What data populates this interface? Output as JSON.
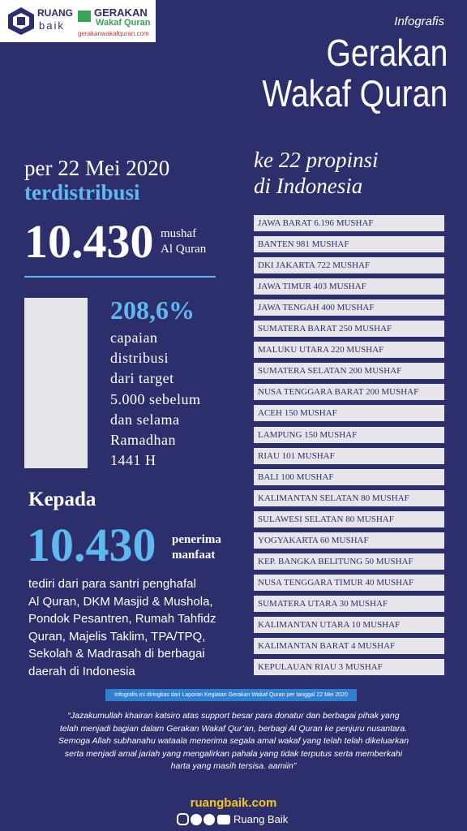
{
  "header": {
    "brand": "RUANG",
    "brand_sub": "baik",
    "partner": "GERAKAN",
    "partner_sub": "Wakaf Quran",
    "partner_url": "gerakanwakafquran.com",
    "kicker": "Infografis",
    "title_line1": "Gerakan",
    "title_line2": "Wakaf Quran"
  },
  "summary": {
    "date": "per 22 Mei 2020",
    "status": "terdistribusi",
    "count": "10.430",
    "unit_line1": "mushaf",
    "unit_line2": "Al Quran",
    "percent": "208,6%",
    "percent_note": [
      "capaian",
      "distribusi",
      "dari target",
      "5.000 sebelum",
      "dan selama",
      "Ramadhan",
      "1441 H"
    ]
  },
  "recipients": {
    "heading": "Kepada",
    "count": "10.430",
    "unit_line1": "penerima",
    "unit_line2": "manfaat",
    "description": [
      "tediri dari para santri penghafal",
      "Al Quran, DKM Masjid & Mushola,",
      "Pondok Pesantren, Rumah Tahfidz",
      "Quran, Majelis Taklim, TPA/TPQ,",
      "Sekolah & Madrasah di berbagai",
      "daerah di Indonesia"
    ]
  },
  "provinces": {
    "heading_line1": "ke 22 propinsi",
    "heading_line2": "di Indonesia",
    "items": [
      "JAWA BARAT 6.196 MUSHAF",
      "BANTEN 981 MUSHAF",
      "DKI JAKARTA 722 MUSHAF",
      "JAWA TIMUR 403 MUSHAF",
      "JAWA TENGAH 400 MUSHAF",
      "SUMATERA BARAT 250 MUSHAF",
      "MALUKU UTARA 220 MUSHAF",
      "SUMATERA SELATAN 200 MUSHAF",
      "NUSA TENGGARA BARAT 200 MUSHAF",
      "ACEH 150 MUSHAF",
      "LAMPUNG 150 MUSHAF",
      "RIAU 101 MUSHAF",
      "BALI 100 MUSHAF",
      "KALIMANTAN SELATAN 80 MUSHAF",
      "SULAWESI SELATAN 80 MUSHAF",
      "YOGYAKARTA 60 MUSHAF",
      "KEP. BANGKA BELITUNG 50 MUSHAF",
      "NUSA TENGGARA TIMUR 40 MUSHAF",
      "SUMATERA UTARA 30 MUSHAF",
      "KALIMANTAN UTARA 10 MUSHAF",
      "KALIMANTAN BARAT 4 MUSHAF",
      "KEPULAUAN RIAU 3 MUSHAF"
    ]
  },
  "footer": {
    "source": "Infografis ini diringkas dari Laporan Kegiatan Gerakan Wakaf Quran per tanggal 22 Mei 2020",
    "quote": [
      "“Jazakumullah khairan katsiro atas support besar para donatur dan berbagai pihak yang",
      "telah menjadi bagian dalam Gerakan Wakaf Qur’an, berbagi Al Quran ke penjuru nusantara.",
      "Semoga Allah subhanahu wataala menerima segala amal wakaf yang telah telah dikeluarkan",
      "serta menjadi amal jariah yang mengalirkan pahala yang tidak terputus serta memberkahi",
      "harta yang masih tersisa. aamiin”"
    ],
    "website": "ruangbaik.com",
    "social": "Ruang Baik"
  }
}
